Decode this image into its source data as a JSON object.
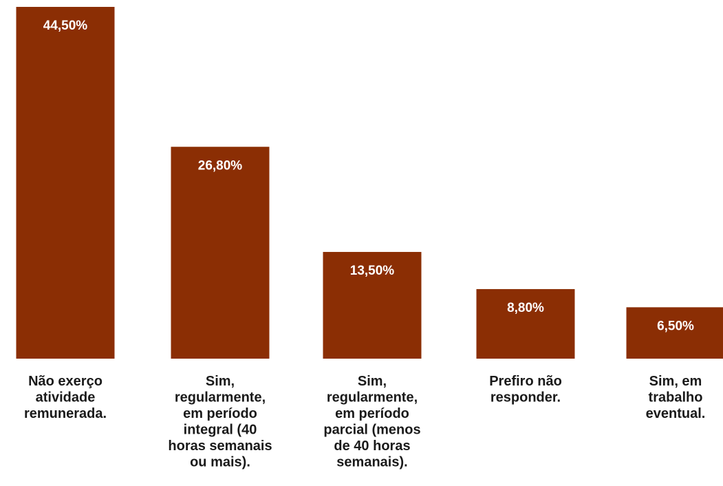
{
  "chart_data": {
    "type": "bar",
    "title": "",
    "xlabel": "",
    "ylabel": "",
    "ylim": [
      0,
      44.5
    ],
    "grid": false,
    "legend": "none",
    "categories": [
      [
        "Não exerço",
        "atividade",
        "remunerada."
      ],
      [
        "Sim,",
        "regularmente,",
        "em período",
        "integral (40",
        "horas semanais",
        "ou mais)."
      ],
      [
        "Sim,",
        "regularmente,",
        "em período",
        "parcial (menos",
        "de 40 horas",
        "semanais)."
      ],
      [
        "Prefiro não",
        "responder."
      ],
      [
        "Sim, em",
        "trabalho",
        "eventual."
      ]
    ],
    "values": [
      44.5,
      26.8,
      13.5,
      8.8,
      6.5
    ],
    "data_labels": [
      "44,50%",
      "26,80%",
      "13,50%",
      "8,80%",
      "6,50%"
    ]
  },
  "colors": {
    "bar": "#8b2e04",
    "value_label": "#ffffff",
    "category_label": "#1a1a1a"
  }
}
